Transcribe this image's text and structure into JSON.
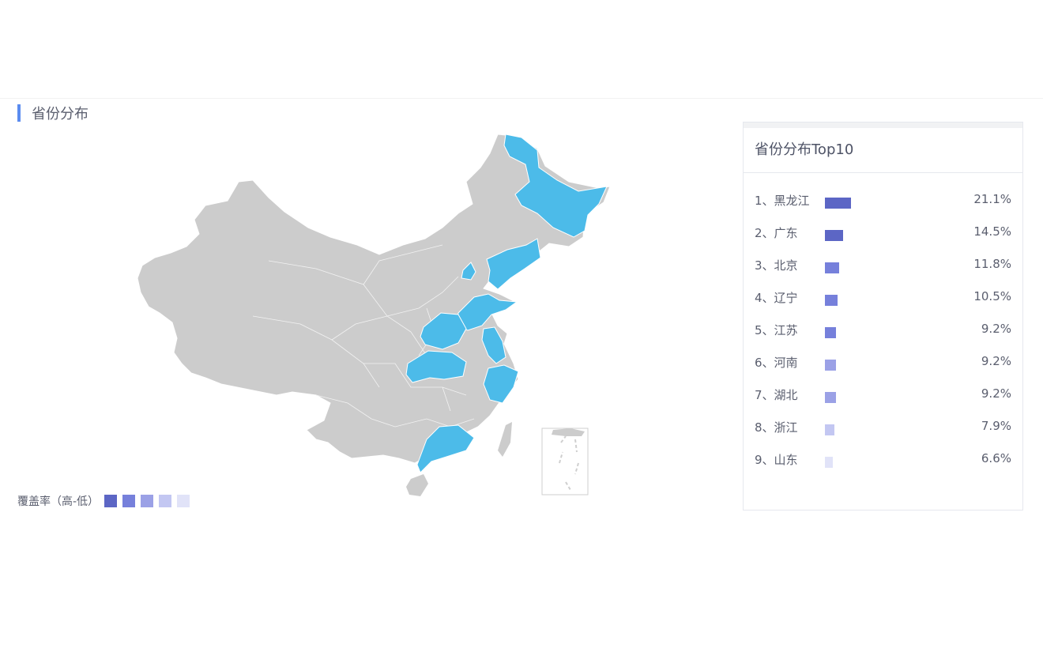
{
  "section": {
    "title": "省份分布"
  },
  "scale_legend": {
    "label": "覆盖率（高-低）",
    "colors": [
      "#5c66c5",
      "#7680db",
      "#9ba1e6",
      "#c3c7f2",
      "#e1e3f8"
    ]
  },
  "map": {
    "base_color": "#cccccc",
    "highlight_color": "#4cbbe9",
    "highlighted": [
      "黑龙江",
      "辽宁",
      "北京",
      "山东",
      "江苏",
      "浙江",
      "河南",
      "湖北",
      "广东"
    ]
  },
  "top10": {
    "title": "省份分布Top10",
    "items": [
      {
        "rank_label": "1、黑龙江",
        "value": "21.1%",
        "pct": 21.1,
        "color": "#5c66c5"
      },
      {
        "rank_label": "2、广东",
        "value": "14.5%",
        "pct": 14.5,
        "color": "#5c66c5"
      },
      {
        "rank_label": "3、北京",
        "value": "11.8%",
        "pct": 11.8,
        "color": "#7680db"
      },
      {
        "rank_label": "4、辽宁",
        "value": "10.5%",
        "pct": 10.5,
        "color": "#7680db"
      },
      {
        "rank_label": "5、江苏",
        "value": "9.2%",
        "pct": 9.2,
        "color": "#7680db"
      },
      {
        "rank_label": "6、河南",
        "value": "9.2%",
        "pct": 9.2,
        "color": "#9ba1e6"
      },
      {
        "rank_label": "7、湖北",
        "value": "9.2%",
        "pct": 9.2,
        "color": "#9ba1e6"
      },
      {
        "rank_label": "8、浙江",
        "value": "7.9%",
        "pct": 7.9,
        "color": "#c3c7f2"
      },
      {
        "rank_label": "9、山东",
        "value": "6.6%",
        "pct": 6.6,
        "color": "#e1e3f8"
      }
    ]
  }
}
